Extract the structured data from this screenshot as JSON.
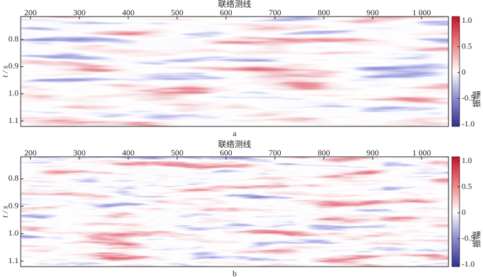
{
  "chart_data": [
    {
      "type": "seismic",
      "xlabel": "联络测线",
      "ylabel": "t / s",
      "caption": "a",
      "colorbar_label": "振幅",
      "xlim": [
        180,
        1055
      ],
      "xticks": [
        200,
        300,
        400,
        500,
        600,
        700,
        800,
        900,
        {
          "value": 1000,
          "label": "1 000"
        }
      ],
      "ylim": [
        0.716,
        1.12
      ],
      "yticks": [
        0.8,
        0.9,
        {
          "value": 1.0,
          "label": "1.0"
        },
        1.1
      ],
      "clim": [
        -1.04,
        1.08
      ],
      "cticks": [
        {
          "value": 1.0,
          "label": "1.0"
        },
        0.5,
        0,
        -0.5,
        {
          "value": -1.0,
          "label": "-1.0"
        }
      ]
    },
    {
      "type": "seismic",
      "xlabel": "联络测线",
      "ylabel": "t / s",
      "caption": "b",
      "colorbar_label": "振幅",
      "xlim": [
        180,
        1055
      ],
      "xticks": [
        200,
        300,
        400,
        500,
        600,
        700,
        800,
        900,
        {
          "value": 1000,
          "label": "1 000"
        }
      ],
      "ylim": [
        0.72,
        1.12
      ],
      "yticks": [
        0.8,
        0.9,
        {
          "value": 1.0,
          "label": "1.0"
        },
        1.1
      ],
      "clim": [
        -1.04,
        1.08
      ],
      "cticks": [
        {
          "value": 1.0,
          "label": "1.0"
        },
        0.5,
        0,
        -0.5,
        {
          "value": -1.0,
          "label": "-1.0"
        }
      ]
    }
  ]
}
